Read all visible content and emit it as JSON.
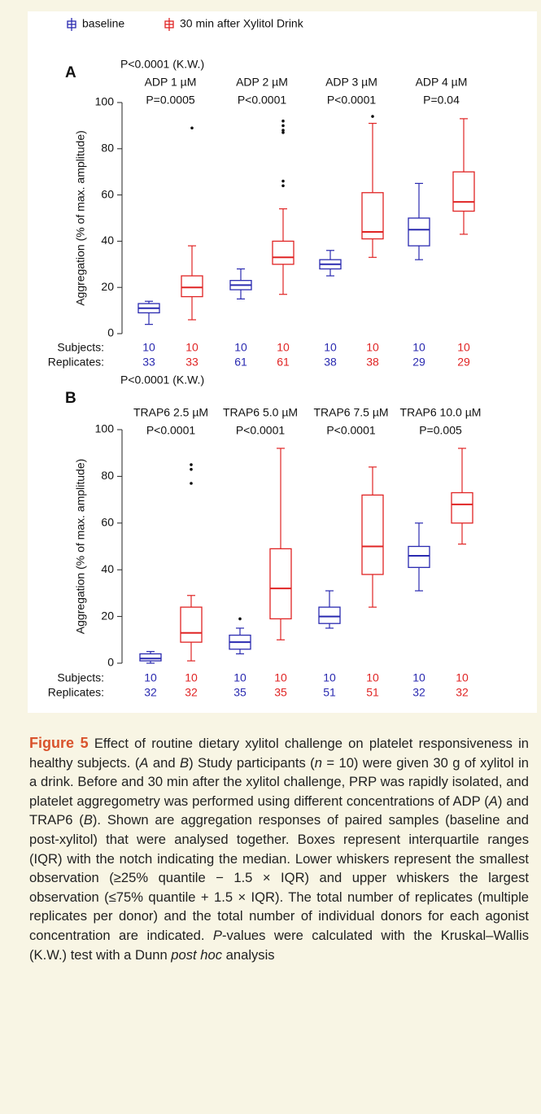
{
  "chart_data": [
    {
      "type": "box",
      "panel": "A",
      "test_label": "P<0.0001 (K.W.)",
      "y_label": "Aggregation (% of max. amplitude)",
      "categories": [
        "ADP 1 µM",
        "ADP 2 µM",
        "ADP 3 µM",
        "ADP 4 µM"
      ],
      "p_values": [
        "P=0.0005",
        "P<0.0001",
        "P<0.0001",
        "P=0.04"
      ],
      "ylim": [
        0,
        100
      ],
      "yticks": [
        0,
        20,
        40,
        60,
        80,
        100
      ],
      "row_labels": [
        "Subjects:",
        "Replicates:"
      ],
      "series": [
        {
          "name": "baseline",
          "color": "#2a2ab0",
          "subjects": [
            10,
            10,
            10,
            10
          ],
          "replicates": [
            33,
            61,
            38,
            29
          ],
          "whisker_low": [
            4,
            15,
            25,
            32
          ],
          "q1": [
            9,
            19,
            28,
            38
          ],
          "median": [
            11,
            21,
            30,
            45
          ],
          "q3": [
            13,
            23,
            32,
            50
          ],
          "whisker_high": [
            14,
            28,
            36,
            65
          ],
          "outliers": [
            [],
            [],
            [],
            []
          ]
        },
        {
          "name": "30 min after Xylitol Drink",
          "color": "#e02424",
          "subjects": [
            10,
            10,
            10,
            10
          ],
          "replicates": [
            33,
            61,
            38,
            29
          ],
          "whisker_low": [
            6,
            17,
            33,
            43
          ],
          "q1": [
            16,
            30,
            41,
            53
          ],
          "median": [
            20,
            33,
            44,
            57
          ],
          "q3": [
            25,
            40,
            61,
            70
          ],
          "whisker_high": [
            38,
            54,
            91,
            93
          ],
          "outliers": [
            [
              89
            ],
            [
              64,
              66,
              87,
              88,
              90,
              92
            ],
            [
              94
            ],
            []
          ]
        }
      ]
    },
    {
      "type": "box",
      "panel": "B",
      "test_label": "P<0.0001 (K.W.)",
      "y_label": "Aggregation (% of max. amplitude)",
      "categories": [
        "TRAP6 2.5 µM",
        "TRAP6 5.0 µM",
        "TRAP6 7.5 µM",
        "TRAP6 10.0 µM"
      ],
      "p_values": [
        "P<0.0001",
        "P<0.0001",
        "P<0.0001",
        "P=0.005"
      ],
      "ylim": [
        0,
        100
      ],
      "yticks": [
        0,
        20,
        40,
        60,
        80,
        100
      ],
      "row_labels": [
        "Subjects:",
        "Replicates:"
      ],
      "series": [
        {
          "color": "#2a2ab0",
          "subjects": [
            10,
            10,
            10,
            10
          ],
          "replicates": [
            32,
            35,
            51,
            32
          ],
          "whisker_low": [
            0,
            4,
            15,
            31
          ],
          "q1": [
            1,
            6,
            17,
            41
          ],
          "median": [
            2,
            9,
            20,
            46
          ],
          "q3": [
            4,
            12,
            24,
            50
          ],
          "whisker_high": [
            5,
            15,
            31,
            60
          ],
          "outliers": [
            [],
            [
              19
            ],
            [],
            []
          ]
        },
        {
          "color": "#e02424",
          "subjects": [
            10,
            10,
            10,
            10
          ],
          "replicates": [
            32,
            35,
            51,
            32
          ],
          "whisker_low": [
            1,
            10,
            24,
            51
          ],
          "q1": [
            9,
            19,
            38,
            60
          ],
          "median": [
            13,
            32,
            50,
            68
          ],
          "q3": [
            24,
            49,
            72,
            73
          ],
          "whisker_high": [
            29,
            92,
            84,
            92
          ],
          "outliers": [
            [
              77,
              83,
              85
            ],
            [],
            [],
            []
          ]
        }
      ]
    }
  ],
  "caption": {
    "label": "Figure 5",
    "runs": [
      {
        "text": " Effect of routine dietary xylitol challenge on platelet responsiveness in healthy subjects. (",
        "italic": false
      },
      {
        "text": "A",
        "italic": true
      },
      {
        "text": " and ",
        "italic": false
      },
      {
        "text": "B",
        "italic": true
      },
      {
        "text": ") Study participants (",
        "italic": false
      },
      {
        "text": "n",
        "italic": true
      },
      {
        "text": " = 10) were given 30 g of xylitol in a drink. Before and 30 min after the xylitol challenge, PRP was rapidly isolated, and platelet aggregometry was performed using different concentrations of ADP (",
        "italic": false
      },
      {
        "text": "A",
        "italic": true
      },
      {
        "text": ") and TRAP6 (",
        "italic": false
      },
      {
        "text": "B",
        "italic": true
      },
      {
        "text": "). Shown are aggregation responses of paired samples (baseline and post-xylitol) that were analysed together. Boxes represent interquartile ranges (IQR) with the notch indicating the median. Lower whiskers represent the smallest observation (≥25% quantile − 1.5 × IQR) and upper whiskers the largest observation (≤75% quantile + 1.5 × IQR). The total number of replicates (multiple replicates per donor) and the total number of individual donors for each agonist concentration are indicated. ",
        "italic": false
      },
      {
        "text": "P",
        "italic": true
      },
      {
        "text": "-values were calculated with the Kruskal–Wallis (K.W.) test with a Dunn ",
        "italic": false
      },
      {
        "text": "post hoc",
        "italic": true
      },
      {
        "text": " analysis",
        "italic": false
      }
    ]
  }
}
